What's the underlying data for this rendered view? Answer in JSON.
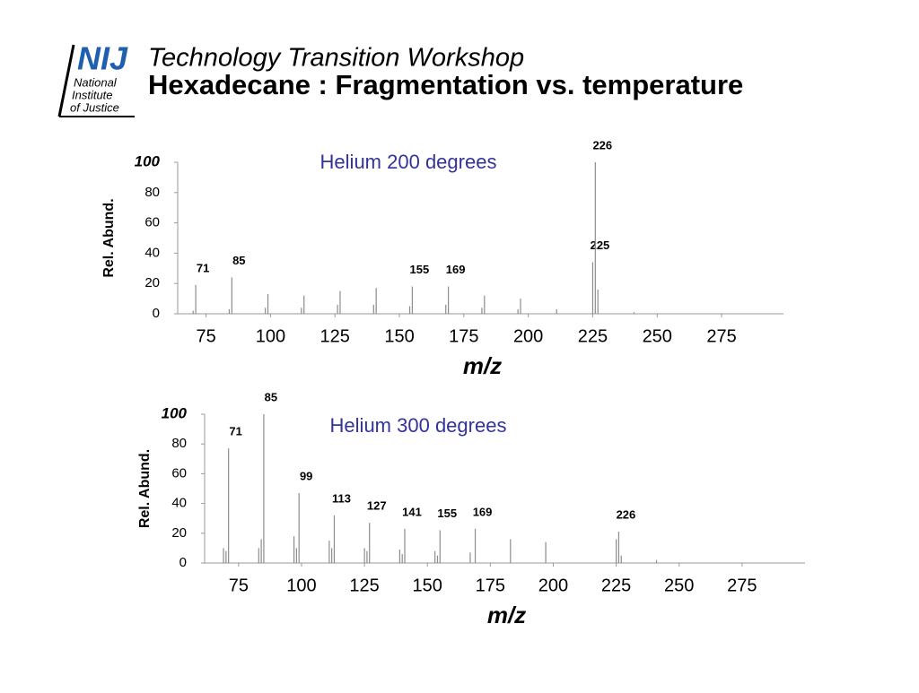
{
  "header": {
    "logo": "NIJ",
    "logo_lines": [
      "National",
      "Institute",
      "of Justice"
    ],
    "title": "Technology Transition Workshop",
    "subtitle": "Hexadecane : Fragmentation vs. temperature"
  },
  "chart_data": [
    {
      "type": "bar",
      "title": "Helium 200 degrees",
      "xlabel": "m/z",
      "ylabel": "Rel. Abund.",
      "color": "#8c8c8c",
      "xlim": [
        64,
        299
      ],
      "ylim": [
        0,
        100
      ],
      "xticks": [
        75,
        100,
        125,
        150,
        175,
        200,
        225,
        250,
        275
      ],
      "yticks": [
        0,
        20,
        40,
        60,
        80,
        100
      ],
      "x": [
        71,
        85,
        155,
        169,
        225,
        226
      ],
      "values": [
        19,
        24,
        18,
        18,
        34,
        100
      ],
      "minor_x": [
        70,
        84,
        98,
        99,
        112,
        113,
        126,
        127,
        140,
        141,
        154,
        168,
        182,
        183,
        196,
        197,
        211,
        227,
        241
      ],
      "minor_values": [
        2,
        3,
        4,
        13,
        4,
        12,
        6,
        15,
        6,
        17,
        5,
        6,
        4,
        12,
        3,
        10,
        3,
        16,
        1
      ]
    },
    {
      "type": "bar",
      "title": "Helium 300 degrees",
      "xlabel": "m/z",
      "ylabel": "Rel. Abund.",
      "color": "#8c8c8c",
      "xlim": [
        61.5,
        300
      ],
      "ylim": [
        0,
        100
      ],
      "xticks": [
        75,
        100,
        125,
        150,
        175,
        200,
        225,
        250,
        275
      ],
      "yticks": [
        0,
        20,
        40,
        60,
        80,
        100
      ],
      "x": [
        71,
        85,
        99,
        113,
        127,
        141,
        155,
        169,
        226
      ],
      "values": [
        77,
        100,
        47,
        32,
        27,
        23,
        22,
        23,
        21
      ],
      "minor_x": [
        69,
        70,
        83,
        84,
        97,
        98,
        111,
        112,
        125,
        126,
        139,
        140,
        153,
        154,
        167,
        183,
        197,
        225,
        227,
        241
      ],
      "minor_values": [
        10,
        8,
        10,
        16,
        18,
        10,
        15,
        10,
        10,
        8,
        9,
        6,
        8,
        5,
        7,
        16,
        14,
        16,
        5,
        2
      ]
    }
  ]
}
